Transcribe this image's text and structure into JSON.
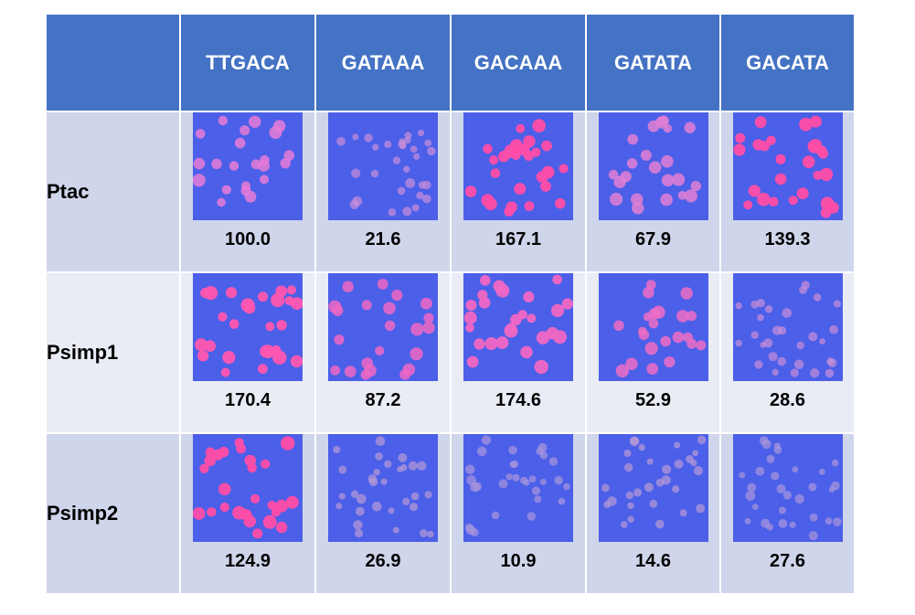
{
  "header": {
    "corner": "",
    "columns": [
      "TTGACA",
      "GATAAA",
      "GACAAA",
      "GATATA",
      "GACATA"
    ]
  },
  "rows": [
    {
      "label": "Ptac",
      "cells": [
        {
          "value": "100.0",
          "colony_color": "#e77bd7",
          "intensity": "medium"
        },
        {
          "value": "21.6",
          "colony_color": "#c98fd8",
          "intensity": "faint"
        },
        {
          "value": "167.1",
          "colony_color": "#ff4da6",
          "intensity": "strong"
        },
        {
          "value": "67.9",
          "colony_color": "#e27fd3",
          "intensity": "medium"
        },
        {
          "value": "139.3",
          "colony_color": "#ff4da6",
          "intensity": "strong"
        }
      ]
    },
    {
      "label": "Psimp1",
      "cells": [
        {
          "value": "170.4",
          "colony_color": "#ff56b0",
          "intensity": "strong"
        },
        {
          "value": "87.2",
          "colony_color": "#f067c4",
          "intensity": "medium"
        },
        {
          "value": "174.6",
          "colony_color": "#f067c4",
          "intensity": "strong"
        },
        {
          "value": "52.9",
          "colony_color": "#ef6dc5",
          "intensity": "medium"
        },
        {
          "value": "28.6",
          "colony_color": "#c98fd8",
          "intensity": "faint"
        }
      ]
    },
    {
      "label": "Psimp2",
      "cells": [
        {
          "value": "124.9",
          "colony_color": "#ff4da6",
          "intensity": "strong"
        },
        {
          "value": "26.9",
          "colony_color": "#b89ad6",
          "intensity": "faint"
        },
        {
          "value": "10.9",
          "colony_color": "#aa95dc",
          "intensity": "faint"
        },
        {
          "value": "14.6",
          "colony_color": "#b89ad6",
          "intensity": "faint"
        },
        {
          "value": "27.6",
          "colony_color": "#aa95dc",
          "intensity": "faint"
        }
      ]
    }
  ],
  "colors": {
    "header_bg": "#4472c4",
    "row_dark": "#cfd5ea",
    "row_light": "#e9ebf5",
    "plate_bg": "#4b5fe8"
  }
}
